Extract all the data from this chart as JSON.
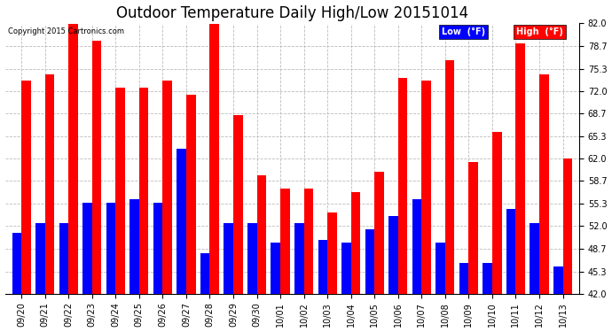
{
  "title": "Outdoor Temperature Daily High/Low 20151014",
  "copyright": "Copyright 2015 Cartronics.com",
  "legend_low": "Low  (°F)",
  "legend_high": "High  (°F)",
  "dates": [
    "09/20",
    "09/21",
    "09/22",
    "09/23",
    "09/24",
    "09/25",
    "09/26",
    "09/27",
    "09/28",
    "09/29",
    "09/30",
    "10/01",
    "10/02",
    "10/03",
    "10/04",
    "10/05",
    "10/06",
    "10/07",
    "10/08",
    "10/09",
    "10/10",
    "10/11",
    "10/12",
    "10/13"
  ],
  "highs": [
    73.5,
    74.5,
    82.0,
    79.5,
    72.5,
    72.5,
    73.5,
    71.5,
    82.0,
    68.5,
    59.5,
    57.5,
    57.5,
    54.0,
    57.0,
    60.0,
    74.0,
    73.5,
    76.5,
    61.5,
    66.0,
    79.0,
    74.5,
    62.0
  ],
  "lows": [
    51.0,
    52.5,
    52.5,
    55.5,
    55.5,
    56.0,
    55.5,
    63.5,
    48.0,
    52.5,
    52.5,
    49.5,
    52.5,
    50.0,
    49.5,
    51.5,
    53.5,
    56.0,
    49.5,
    46.5,
    46.5,
    54.5,
    52.5,
    46.0
  ],
  "ylim_min": 42.0,
  "ylim_max": 82.0,
  "yticks": [
    42.0,
    45.3,
    48.7,
    52.0,
    55.3,
    58.7,
    62.0,
    65.3,
    68.7,
    72.0,
    75.3,
    78.7,
    82.0
  ],
  "high_color": "#ff0000",
  "low_color": "#0000ff",
  "bg_color": "#ffffff",
  "grid_color": "#bbbbbb",
  "title_fontsize": 12,
  "tick_fontsize": 7,
  "bar_width": 0.4
}
